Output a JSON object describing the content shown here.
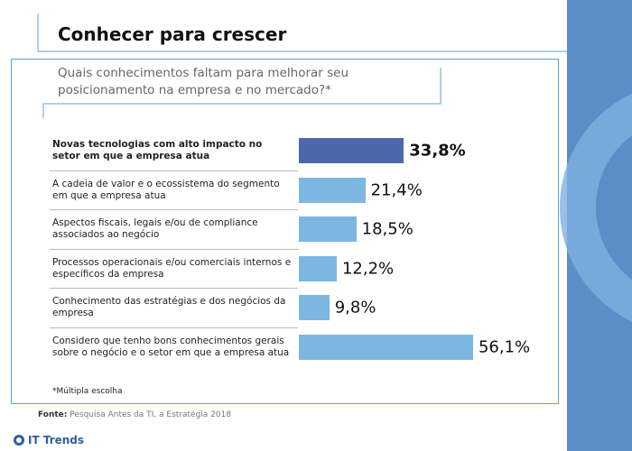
{
  "chart_data": {
    "type": "bar",
    "orientation": "horizontal",
    "title": "Conhecer para crescer",
    "subtitle": "Quais conhecimentos faltam para melhorar seu posicionamento na empresa e no mercado?*",
    "categories": [
      "Novas tecnologias com alto impacto no setor em que a empresa atua",
      "A cadeia de valor e o ecossistema do segmento em que a empresa atua",
      "Aspectos fiscais, legais e/ou de compliance associados ao negócio",
      "Processos operacionais e/ou comerciais internos e específicos da empresa",
      "Conhecimento das estratégias e dos negócios da empresa",
      "Considero que tenho bons conhecimentos gerais sobre o negócio e o setor em que a empresa atua"
    ],
    "values": [
      33.8,
      21.4,
      18.5,
      12.2,
      9.8,
      56.1
    ],
    "value_labels": [
      "33,8%",
      "21,4%",
      "18,5%",
      "12,2%",
      "9,8%",
      "56,1%"
    ],
    "colors": [
      "#4c68ad",
      "#7cb7e1",
      "#7cb7e1",
      "#7cb7e1",
      "#7cb7e1",
      "#7cb7e1"
    ],
    "note": "*Múltipla escolha",
    "source": {
      "label": "Fonte:",
      "text": "Pesquisa Antes da TI, a Estratégia 2018"
    },
    "brand": "IT Trends"
  }
}
